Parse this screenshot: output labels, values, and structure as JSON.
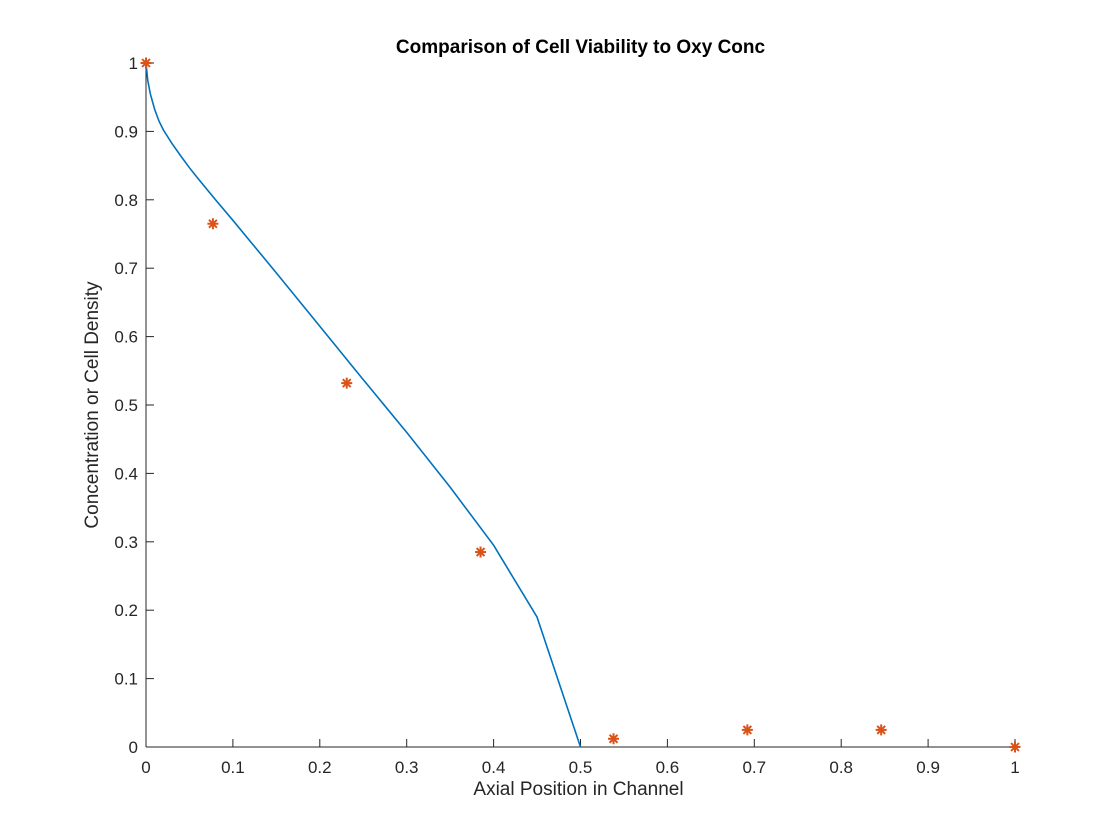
{
  "chart_data": {
    "type": "line",
    "title": "Comparison of Cell Viability to Oxy Conc",
    "xlabel": "Axial Position in Channel",
    "ylabel": "Concentration or Cell Density",
    "xlim": [
      0,
      1
    ],
    "ylim": [
      0,
      1
    ],
    "xticks": [
      "0",
      "0.1",
      "0.2",
      "0.3",
      "0.4",
      "0.5",
      "0.6",
      "0.7",
      "0.8",
      "0.9",
      "1"
    ],
    "yticks": [
      "0",
      "0.1",
      "0.2",
      "0.3",
      "0.4",
      "0.5",
      "0.6",
      "0.7",
      "0.8",
      "0.9",
      "1"
    ],
    "grid": false,
    "legend": "none",
    "series": [
      {
        "kind": "line",
        "color": "#0072BD",
        "x": [
          0,
          0.002,
          0.005,
          0.01,
          0.015,
          0.02,
          0.03,
          0.04,
          0.05,
          0.06,
          0.08,
          0.1,
          0.15,
          0.2,
          0.25,
          0.3,
          0.35,
          0.4,
          0.45,
          0.5
        ],
        "y": [
          1.0,
          0.975,
          0.955,
          0.932,
          0.915,
          0.902,
          0.882,
          0.864,
          0.847,
          0.831,
          0.8,
          0.77,
          0.693,
          0.615,
          0.537,
          0.46,
          0.38,
          0.295,
          0.19,
          0.0
        ]
      },
      {
        "kind": "markers",
        "marker": "asterisk",
        "color": "#D95319",
        "x": [
          0,
          0.077,
          0.231,
          0.385,
          0.538,
          0.692,
          0.846,
          1.0
        ],
        "y": [
          1.0,
          0.765,
          0.532,
          0.285,
          0.012,
          0.025,
          0.025,
          0.0
        ]
      }
    ]
  }
}
